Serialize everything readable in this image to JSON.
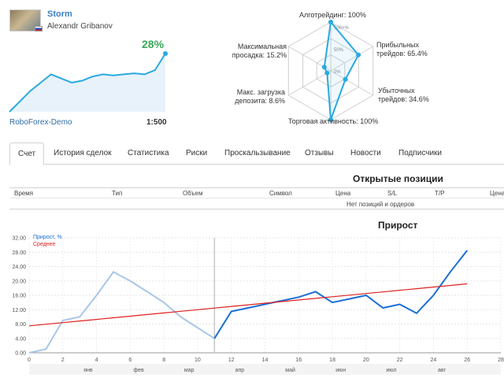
{
  "profile": {
    "name": "Storm",
    "author": "Alexandr Gribanov",
    "gain": "28%",
    "broker": "RoboForex-Demo",
    "leverage": "1:500",
    "accent": "#3aa757",
    "spark_values": [
      0,
      5,
      10,
      14,
      18,
      16,
      14,
      15,
      17,
      18,
      17.5,
      18,
      18.5,
      18,
      20,
      28
    ]
  },
  "radar": {
    "labels": [
      {
        "text": "Алготрейдинг: 100%"
      },
      {
        "text": "Прибыльных трейдов: 65.4%"
      },
      {
        "text": "Убыточных трейдов: 34.6%"
      },
      {
        "text": "Торговая активность: 100%"
      },
      {
        "text": "Макс. загрузка депозита: 8.6%"
      },
      {
        "text": "Максимальная просадка: 15.2%"
      }
    ],
    "values": [
      100,
      65.4,
      34.6,
      100,
      8.6,
      15.2
    ],
    "rings": [
      "100+%",
      "50%",
      "0%"
    ],
    "color": "#29a9e0"
  },
  "tabs": [
    "Счет",
    "История сделок",
    "Статистика",
    "Риски",
    "Проскальзывание",
    "Отзывы",
    "Новости",
    "Подписчики"
  ],
  "active_tab": 0,
  "positions": {
    "title": "Открытые позиции",
    "columns": [
      "Время",
      "Тип",
      "Объем",
      "Символ",
      "Цена",
      "S/L",
      "T/P",
      "Цена"
    ],
    "empty": "Нет позиций и ордеров"
  },
  "chart_data": {
    "type": "line",
    "title": "Прирост",
    "x": [
      0,
      1,
      2,
      3,
      4,
      5,
      6,
      7,
      8,
      9,
      10,
      11,
      12,
      13,
      14,
      15,
      16,
      17,
      18,
      19,
      20,
      21,
      22,
      23,
      24,
      25,
      26
    ],
    "series": [
      {
        "name": "Прирост, %",
        "color": "#1a6fd6",
        "values": [
          0,
          1,
          9,
          10,
          16,
          22.5,
          20,
          17,
          14,
          10,
          7,
          4,
          11.5,
          12.5,
          13.5,
          14.5,
          15.5,
          17,
          14,
          15,
          16,
          12.5,
          13.5,
          11,
          16,
          22.5,
          28.5
        ]
      },
      {
        "name": "Среднее",
        "color": "#e02020",
        "values": [
          7.5,
          7.95,
          8.4,
          8.85,
          9.3,
          9.75,
          10.2,
          10.65,
          11.1,
          11.55,
          12.0,
          12.45,
          12.9,
          13.35,
          13.8,
          14.25,
          14.7,
          15.15,
          15.6,
          16.05,
          16.5,
          16.95,
          17.4,
          17.85,
          18.3,
          18.75,
          19.2
        ]
      }
    ],
    "history_end_x": 11,
    "xticks": [
      0,
      2,
      4,
      6,
      8,
      10,
      12,
      14,
      16,
      18,
      20,
      22,
      24,
      26,
      28
    ],
    "xlim": [
      0,
      28
    ],
    "yticks": [
      "0.00",
      "4.00",
      "8.00",
      "12.00",
      "16.00",
      "20.00",
      "24.00",
      "28.00",
      "32.00"
    ],
    "ylim": [
      0,
      32
    ],
    "months": [
      "янв",
      "фев",
      "мар",
      "апр",
      "май",
      "июн",
      "июл",
      "авг"
    ],
    "month_x": [
      3.5,
      6.5,
      9.5,
      12.5,
      15.5,
      18.5,
      21.5,
      24.5
    ],
    "grid": true
  }
}
